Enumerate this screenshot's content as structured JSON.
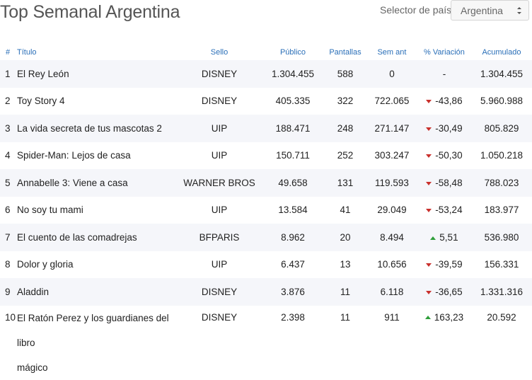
{
  "header": {
    "title": "Top Semanal Argentina",
    "selector_label": "Selector de país",
    "selector_value": "Argentina"
  },
  "table": {
    "columns": [
      "#",
      "Título",
      "Sello",
      "Público",
      "Pantallas",
      "Sem ant",
      "% Variación",
      "Acumulado"
    ],
    "rows": [
      {
        "rank": "1",
        "title": "El Rey León",
        "label": "DISNEY",
        "public": "1.304.455",
        "screens": "588",
        "prev": "0",
        "variation": "-",
        "trend": "none",
        "total": "1.304.455"
      },
      {
        "rank": "2",
        "title": "Toy Story 4",
        "label": "DISNEY",
        "public": "405.335",
        "screens": "322",
        "prev": "722.065",
        "variation": "-43,86",
        "trend": "down",
        "total": "5.960.988"
      },
      {
        "rank": "3",
        "title": "La vida secreta de tus mascotas 2",
        "label": "UIP",
        "public": "188.471",
        "screens": "248",
        "prev": "271.147",
        "variation": "-30,49",
        "trend": "down",
        "total": "805.829"
      },
      {
        "rank": "4",
        "title": "Spider-Man: Lejos de casa",
        "label": "UIP",
        "public": "150.711",
        "screens": "252",
        "prev": "303.247",
        "variation": "-50,30",
        "trend": "down",
        "total": "1.050.218"
      },
      {
        "rank": "5",
        "title": "Annabelle 3: Viene a casa",
        "label": "WARNER BROS",
        "public": "49.658",
        "screens": "131",
        "prev": "119.593",
        "variation": "-58,48",
        "trend": "down",
        "total": "788.023"
      },
      {
        "rank": "6",
        "title": "No soy tu mami",
        "label": "UIP",
        "public": "13.584",
        "screens": "41",
        "prev": "29.049",
        "variation": "-53,24",
        "trend": "down",
        "total": "183.977"
      },
      {
        "rank": "7",
        "title": "El cuento de las comadrejas",
        "label": "BFPARIS",
        "public": "8.962",
        "screens": "20",
        "prev": "8.494",
        "variation": "5,51",
        "trend": "up",
        "total": "536.980"
      },
      {
        "rank": "8",
        "title": "Dolor y gloria",
        "label": "UIP",
        "public": "6.437",
        "screens": "13",
        "prev": "10.656",
        "variation": "-39,59",
        "trend": "down",
        "total": "156.331"
      },
      {
        "rank": "9",
        "title": "Aladdin",
        "label": "DISNEY",
        "public": "3.876",
        "screens": "11",
        "prev": "6.118",
        "variation": "-36,65",
        "trend": "down",
        "total": "1.331.316"
      },
      {
        "rank": "10",
        "title_line1": "El Ratón Perez y los guardianes del libro",
        "title_line2": "mágico",
        "label": "DISNEY",
        "public": "2.398",
        "screens": "11",
        "prev": "911",
        "variation": "163,23",
        "trend": "up",
        "total": "20.592"
      }
    ]
  },
  "colors": {
    "header_text": "#2a6fb8",
    "down_arrow": "#c9302c",
    "up_arrow": "#2e9e3a",
    "row_stripe": "#f5f6fa"
  }
}
